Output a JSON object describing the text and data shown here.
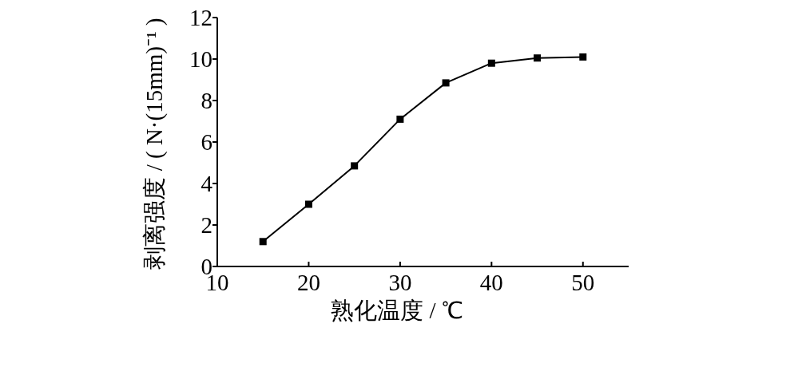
{
  "chart_data": {
    "type": "line",
    "xlabel": "熟化温度 / ℃",
    "ylabel": "剥离强度 / ( N·(15mm)⁻¹ )",
    "x": [
      15,
      20,
      25,
      30,
      35,
      40,
      45,
      50
    ],
    "values": [
      1.2,
      3.0,
      4.85,
      7.1,
      8.85,
      9.8,
      10.05,
      10.1
    ],
    "color": "#000000",
    "xlim": [
      10,
      55
    ],
    "ylim": [
      0,
      12
    ],
    "xticks": [
      10,
      20,
      30,
      40,
      50
    ],
    "yticks": [
      0,
      2,
      4,
      6,
      8,
      10,
      12
    ],
    "marker": "square",
    "line_style": "solid"
  }
}
